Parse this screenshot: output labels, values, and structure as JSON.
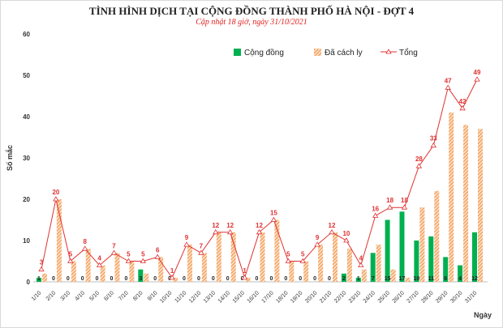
{
  "chart_data": {
    "type": "bar",
    "title": "TÌNH HÌNH DỊCH TẠI CỘNG ĐỒNG THÀNH PHỐ HÀ NỘI - ĐỢT 4",
    "subtitle": "Cập nhật 18 giờ, ngày 31/10/2021",
    "xlabel": "Ngày",
    "ylabel": "Số mắc",
    "ylim": [
      0,
      60
    ],
    "yticks": [
      0,
      10,
      20,
      30,
      40,
      50,
      60
    ],
    "legend_position": "top",
    "categories": [
      "1/10",
      "2/10",
      "3/10",
      "4/10",
      "5/10",
      "6/10",
      "7/10",
      "8/10",
      "9/10",
      "10/10",
      "11/10",
      "12/10",
      "13/10",
      "14/10",
      "15/10",
      "16/10",
      "17/10",
      "18/10",
      "19/10",
      "20/10",
      "21/10",
      "22/10",
      "23/10",
      "24/10",
      "25/10",
      "26/10",
      "27/10",
      "28/10",
      "29/10",
      "30/10",
      "31/10"
    ],
    "series": [
      {
        "name": "Cộng đồng",
        "kind": "bar",
        "color": "#00b050",
        "values": [
          1,
          0,
          0,
          0,
          0,
          0,
          0,
          3,
          0,
          0,
          0,
          0,
          0,
          0,
          0,
          0,
          0,
          0,
          0,
          0,
          0,
          2,
          1,
          7,
          15,
          17,
          10,
          11,
          6,
          4,
          12
        ]
      },
      {
        "name": "Đã cách ly",
        "kind": "bar-hatched",
        "color": "#f4b183",
        "values": [
          2,
          20,
          5,
          8,
          4,
          7,
          5,
          2,
          6,
          1,
          9,
          7,
          12,
          12,
          1,
          12,
          15,
          5,
          5,
          9,
          12,
          8,
          3,
          9,
          3,
          1,
          18,
          22,
          41,
          38,
          37
        ]
      },
      {
        "name": "Tổng",
        "kind": "line",
        "color": "#e03030",
        "values": [
          3,
          20,
          5,
          8,
          4,
          7,
          5,
          5,
          6,
          1,
          9,
          7,
          12,
          12,
          1,
          12,
          15,
          5,
          5,
          9,
          12,
          10,
          4,
          16,
          18,
          18,
          28,
          33,
          47,
          42,
          49
        ]
      }
    ]
  }
}
